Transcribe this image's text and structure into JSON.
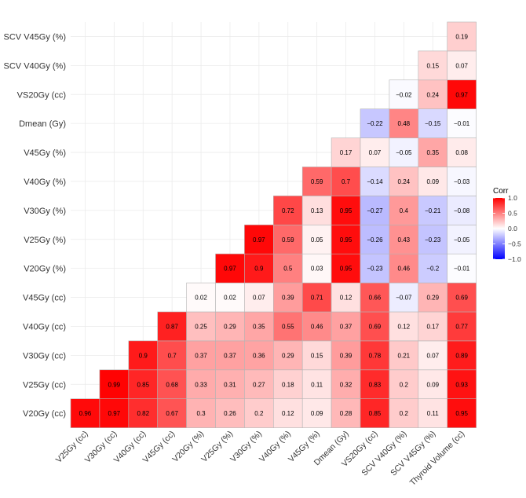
{
  "chart_data": {
    "type": "heatmap",
    "title": "",
    "xlabel": "",
    "ylabel": "",
    "variables": [
      "V20Gy (cc)",
      "V25Gy (cc)",
      "V30Gy (cc)",
      "V40Gy (cc)",
      "V45Gy (cc)",
      "V20Gy (%)",
      "V25Gy (%)",
      "V30Gy (%)",
      "V40Gy (%)",
      "V45Gy (%)",
      "Dmean (Gy)",
      "VS20Gy (cc)",
      "SCV V40Gy (%)",
      "SCV V45Gy (%)"
    ],
    "x_labels": [
      "V25Gy (cc)",
      "V30Gy (cc)",
      "V40Gy (cc)",
      "V45Gy (cc)",
      "V20Gy (%)",
      "V25Gy (%)",
      "V30Gy (%)",
      "V40Gy (%)",
      "V45Gy (%)",
      "Dmean (Gy)",
      "VS20Gy (cc)",
      "SCV V40Gy (%)",
      "SCV V45Gy (%)",
      "Thyroid Volume (cc)"
    ],
    "matrix": [
      [
        0.96,
        0.97,
        0.82,
        0.67,
        0.3,
        0.26,
        0.2,
        0.12,
        0.09,
        0.28,
        0.85,
        0.2,
        0.11,
        0.95
      ],
      [
        null,
        0.99,
        0.85,
        0.68,
        0.33,
        0.31,
        0.27,
        0.18,
        0.11,
        0.32,
        0.83,
        0.2,
        0.09,
        0.93
      ],
      [
        null,
        null,
        0.9,
        0.7,
        0.37,
        0.37,
        0.36,
        0.29,
        0.15,
        0.39,
        0.78,
        0.21,
        0.07,
        0.89
      ],
      [
        null,
        null,
        null,
        0.87,
        0.25,
        0.29,
        0.35,
        0.55,
        0.46,
        0.37,
        0.69,
        0.12,
        0.17,
        0.77
      ],
      [
        null,
        null,
        null,
        null,
        0.02,
        0.02,
        0.07,
        0.39,
        0.71,
        0.12,
        0.66,
        -0.07,
        0.29,
        0.69
      ],
      [
        null,
        null,
        null,
        null,
        null,
        0.97,
        0.9,
        0.5,
        0.03,
        0.95,
        -0.23,
        0.46,
        -0.2,
        -0.01
      ],
      [
        null,
        null,
        null,
        null,
        null,
        null,
        0.97,
        0.59,
        0.05,
        0.95,
        -0.26,
        0.43,
        -0.23,
        -0.05
      ],
      [
        null,
        null,
        null,
        null,
        null,
        null,
        null,
        0.72,
        0.13,
        0.95,
        -0.27,
        0.4,
        -0.21,
        -0.08
      ],
      [
        null,
        null,
        null,
        null,
        null,
        null,
        null,
        null,
        0.59,
        0.7,
        -0.14,
        0.24,
        0.09,
        -0.03
      ],
      [
        null,
        null,
        null,
        null,
        null,
        null,
        null,
        null,
        null,
        0.17,
        0.07,
        -0.05,
        0.35,
        0.08
      ],
      [
        null,
        null,
        null,
        null,
        null,
        null,
        null,
        null,
        null,
        null,
        -0.22,
        0.48,
        -0.15,
        -0.01
      ],
      [
        null,
        null,
        null,
        null,
        null,
        null,
        null,
        null,
        null,
        null,
        null,
        -0.02,
        0.24,
        0.97
      ],
      [
        null,
        null,
        null,
        null,
        null,
        null,
        null,
        null,
        null,
        null,
        null,
        null,
        0.15,
        0.07
      ],
      [
        null,
        null,
        null,
        null,
        null,
        null,
        null,
        null,
        null,
        null,
        null,
        null,
        null,
        0.19
      ]
    ],
    "color_scale": {
      "low": "#0000ff",
      "mid": "#ffffff",
      "high": "#ff0000",
      "range": [
        -1,
        1
      ]
    },
    "legend": {
      "title": "Corr",
      "placement": "right",
      "ticks": [
        1.0,
        0.5,
        0.0,
        -0.5,
        -1.0
      ],
      "tick_labels": [
        "1.0",
        "0.5",
        "0.0",
        "−0.5",
        "−1.0"
      ]
    },
    "grid": true
  }
}
